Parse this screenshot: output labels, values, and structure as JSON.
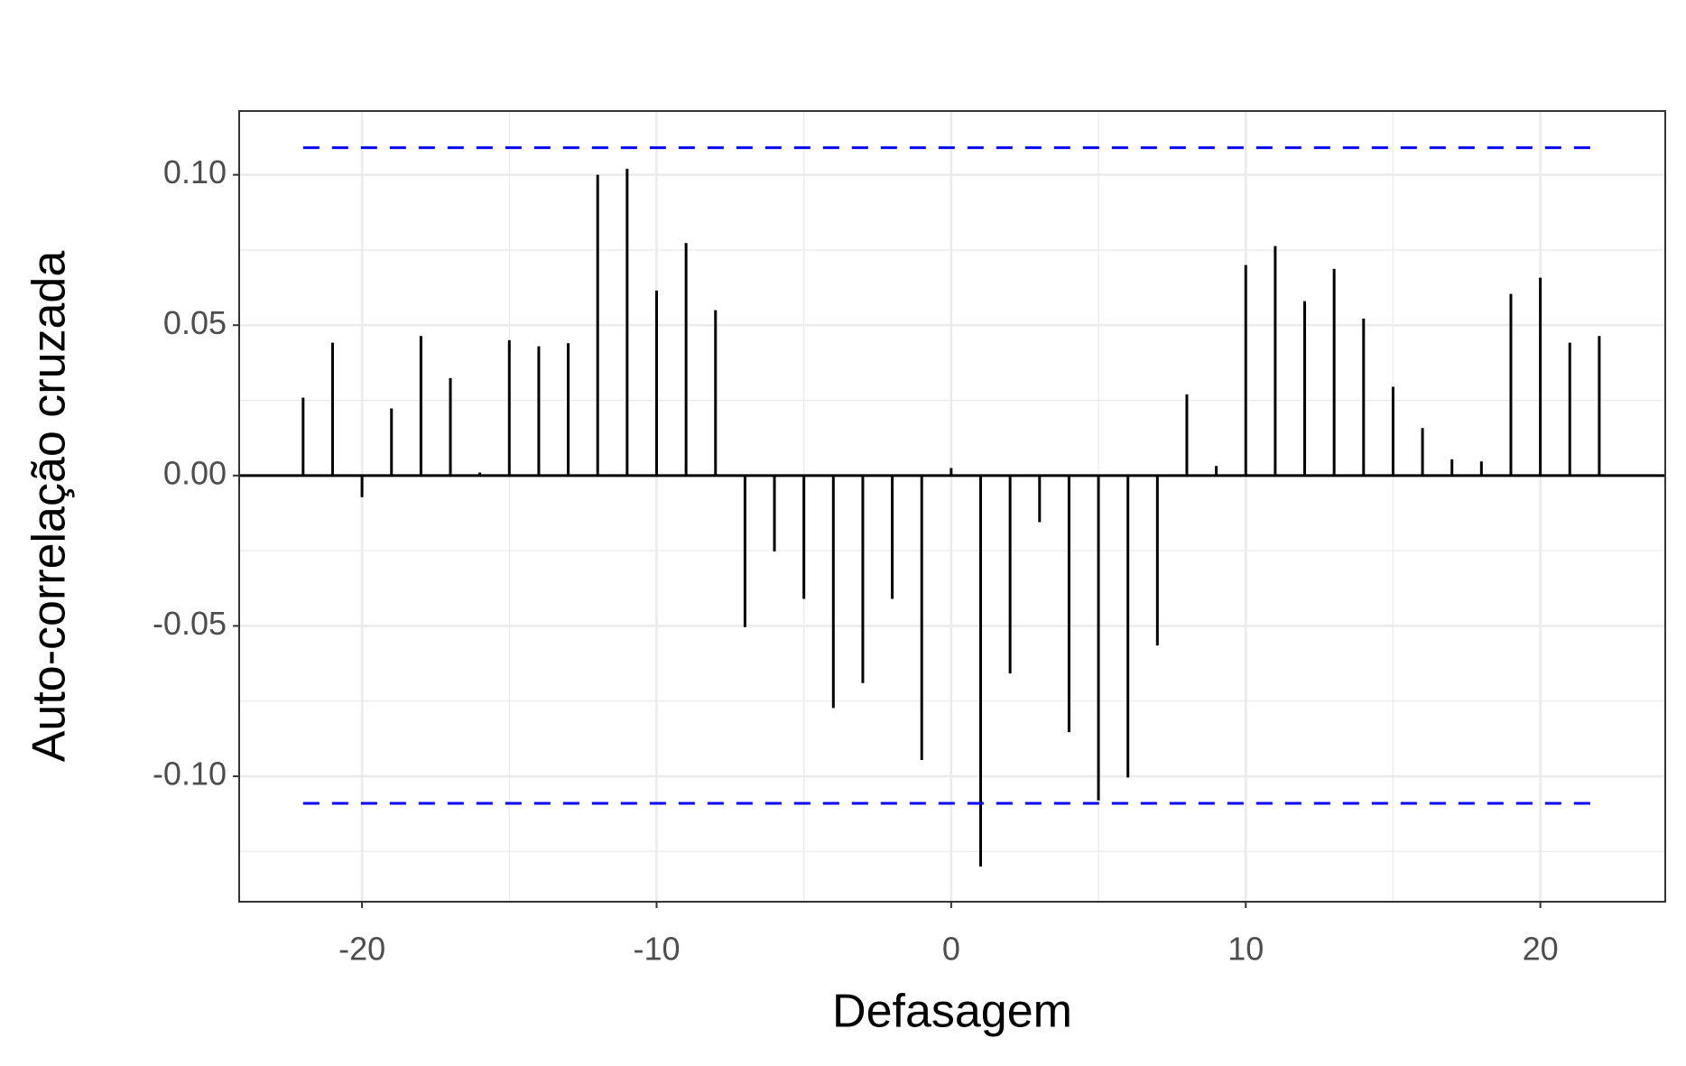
{
  "chart_data": {
    "type": "bar",
    "x_label": "Defasagem",
    "y_label": "Auto-correlação cruzada",
    "x": [
      -22,
      -21,
      -20,
      -19,
      -18,
      -17,
      -16,
      -15,
      -14,
      -13,
      -12,
      -11,
      -10,
      -9,
      -8,
      -7,
      -6,
      -5,
      -4,
      -3,
      -2,
      -1,
      0,
      1,
      2,
      3,
      4,
      5,
      6,
      7,
      8,
      9,
      10,
      11,
      12,
      13,
      14,
      15,
      16,
      17,
      18,
      19,
      20,
      21,
      22
    ],
    "values": [
      0.0259,
      0.0442,
      -0.0072,
      0.0223,
      0.0464,
      0.0324,
      0.001,
      0.045,
      0.043,
      0.044,
      0.1,
      0.102,
      0.0615,
      0.0773,
      0.055,
      -0.0504,
      -0.0252,
      -0.041,
      -0.0773,
      -0.069,
      -0.041,
      -0.0946,
      0.0025,
      -0.13,
      -0.0658,
      -0.0155,
      -0.0853,
      -0.108,
      -0.1004,
      -0.0565,
      0.027,
      0.0032,
      0.07,
      0.0763,
      0.058,
      0.0687,
      0.0522,
      0.0295,
      0.0158,
      0.0054,
      0.0047,
      0.0604,
      0.0658,
      0.0442,
      0.0464
    ],
    "color": "#000000",
    "hlines": [
      0.109,
      -0.109
    ],
    "hline_color": "#0000ff",
    "xlim": [
      -24.17,
      24.24
    ],
    "ylim": [
      -0.1417,
      0.1212
    ],
    "xticks": [
      -20,
      -10,
      0,
      10,
      20
    ],
    "yticks": [
      {
        "value": -0.1,
        "label": "-0.10"
      },
      {
        "value": -0.05,
        "label": "-0.05"
      },
      {
        "value": 0,
        "label": "0.00"
      },
      {
        "value": 0.05,
        "label": "0.05"
      },
      {
        "value": 0.1,
        "label": "0.10"
      }
    ],
    "grid": true
  }
}
